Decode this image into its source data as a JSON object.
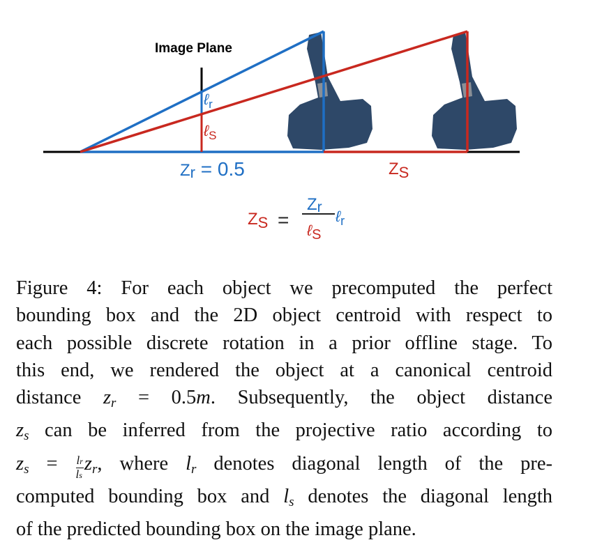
{
  "figure": {
    "image_plane_label": "Image Plane",
    "lr_label": {
      "l": "ℓ",
      "sub": "r"
    },
    "ls_label": {
      "l": "ℓ",
      "sub": "S"
    },
    "zr_label": {
      "z": "Z",
      "sub": "r",
      "rest": " = 0.5"
    },
    "zs_label": {
      "z": "Z",
      "sub": "S"
    },
    "formula": {
      "lhs_z": "Z",
      "lhs_sub": "S",
      "eq": "=",
      "num_z": "Z",
      "num_sub": "r",
      "den_l": "ℓ",
      "den_sub": "S",
      "mult_l": "ℓ",
      "mult_sub": "r"
    },
    "colors": {
      "blue": "#1f6fc4",
      "red": "#c8281f",
      "black": "#000000",
      "object": "#2e4868"
    }
  },
  "caption": {
    "line1": "Figure 4:  For each object we precomputed the perfect",
    "line2": "bounding box and the 2D object centroid with respect to",
    "line3": "each possible discrete rotation in a prior offline stage.  To",
    "line4": "this end, we rendered the object at a canonical centroid",
    "line5_a": "distance ",
    "line5_math": {
      "z": "z",
      "sub": "r",
      "eq": " = ",
      "val": "0.5",
      "unit": "m"
    },
    "line5_b": ".  Subsequently, the object distance",
    "line6_math": {
      "z": "z",
      "sub": "s"
    },
    "line6_b": " can be inferred from the projective ratio according to",
    "line7_math": {
      "z": "z",
      "sub": "s",
      "eq": " = ",
      "num": "l_r",
      "num_l": "l",
      "num_sub": "r",
      "den_l": "l",
      "den_sub": "s",
      "z2": "z",
      "z2_sub": "r"
    },
    "line7_b": ", where ",
    "line7_l": {
      "l": "l",
      "sub": "r"
    },
    "line7_c": " denotes diagonal length of the pre-",
    "line8_a": "computed bounding box and ",
    "line8_l": {
      "l": "l",
      "sub": "s"
    },
    "line8_b": " denotes the diagonal length",
    "line9": "of the predicted bounding box on the image plane."
  }
}
